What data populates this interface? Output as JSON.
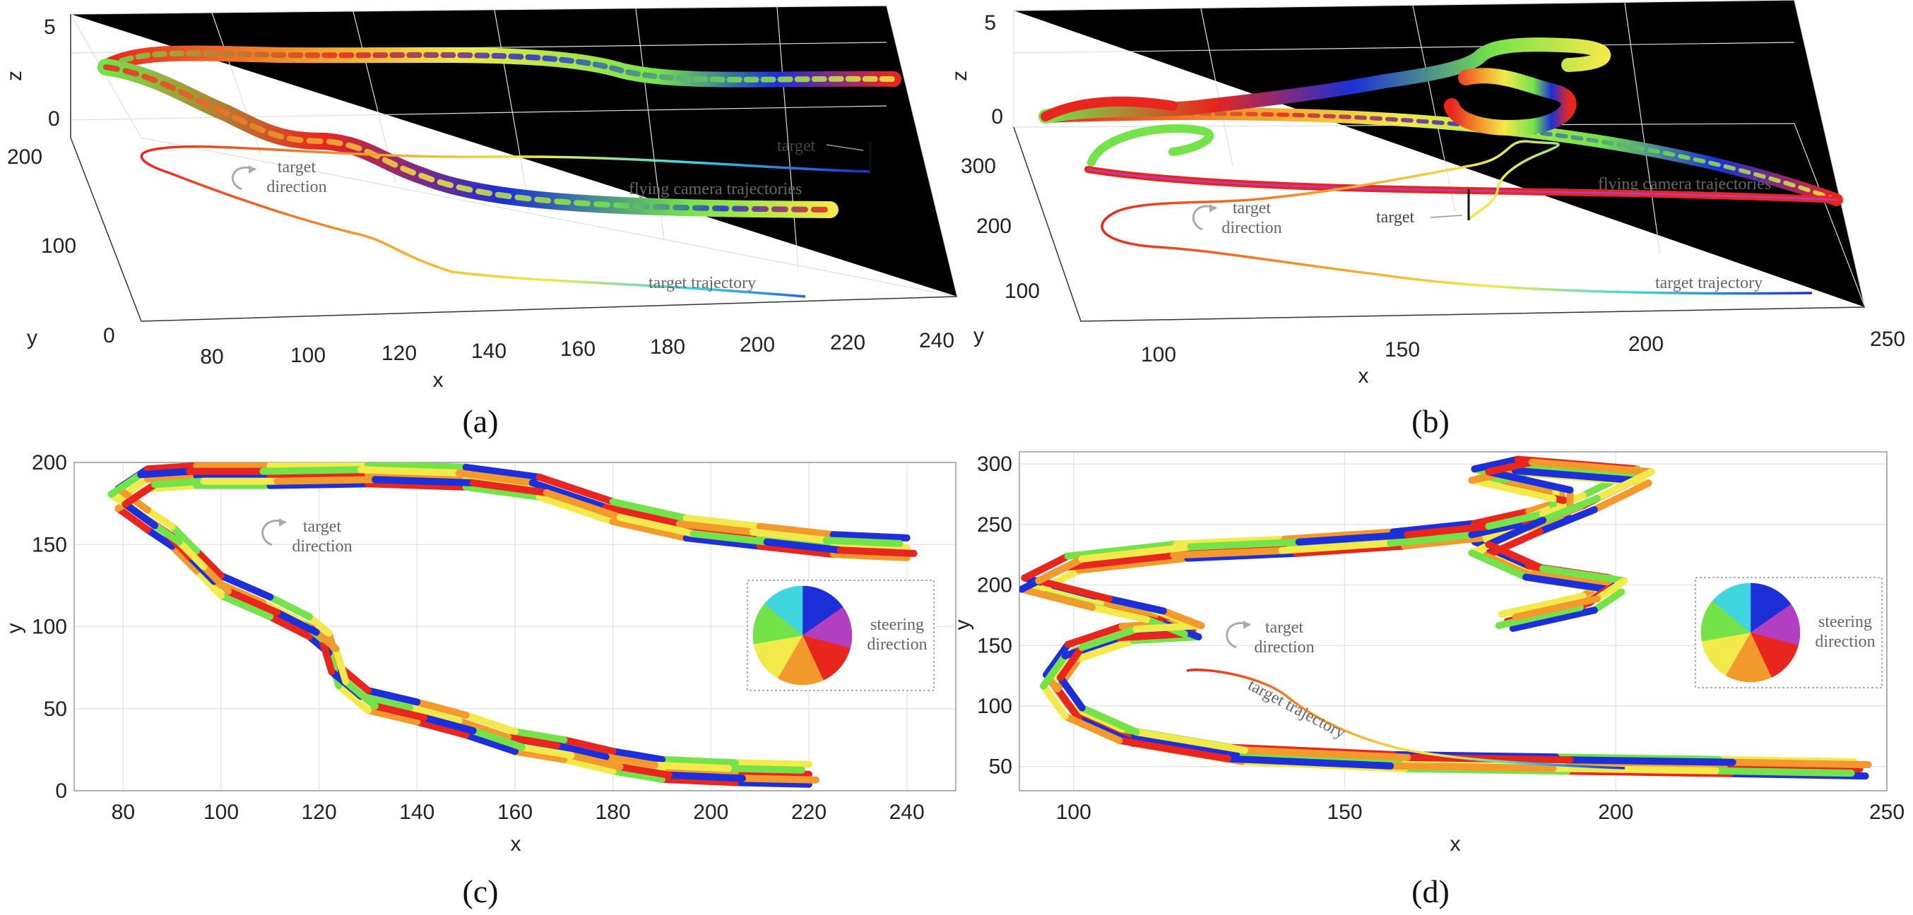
{
  "captions": [
    "(a)",
    "(b)",
    "(c)",
    "(d)"
  ],
  "colors": {
    "red": "#e8261e",
    "orange": "#f39a2c",
    "yellow": "#f2e94a",
    "green": "#74e34a",
    "cyan": "#3fd6e0",
    "blue": "#1c2fd8",
    "purple": "#b23fbf",
    "annotation_gray": "#8a8a8a"
  },
  "colorwheel_label_line1": "steering",
  "colorwheel_label_line2": "direction",
  "chart_data": [
    {
      "id": "a",
      "type": "line",
      "view": "3d",
      "xlabel": "x",
      "ylabel": "y",
      "zlabel": "z",
      "x_ticks": [
        "80",
        "100",
        "120",
        "140",
        "160",
        "180",
        "200",
        "220",
        "240"
      ],
      "y_ticks": [
        "0",
        "100",
        "200"
      ],
      "z_ticks": [
        "0",
        "5"
      ],
      "annotations": {
        "target": "target",
        "direction_line1": "target",
        "direction_line2": "direction",
        "flying": "flying camera trajectories",
        "trajectory": "target trajectory"
      }
    },
    {
      "id": "b",
      "type": "line",
      "view": "3d",
      "xlabel": "x",
      "ylabel": "y",
      "zlabel": "z",
      "x_ticks": [
        "100",
        "150",
        "200",
        "250"
      ],
      "y_ticks": [
        "100",
        "200",
        "300"
      ],
      "z_ticks": [
        "0",
        "5"
      ],
      "annotations": {
        "target": "target",
        "direction_line1": "target",
        "direction_line2": "direction",
        "flying": "flying camera trajectories",
        "trajectory": "target trajectory"
      }
    },
    {
      "id": "c",
      "type": "line",
      "view": "2d",
      "xlabel": "x",
      "ylabel": "y",
      "xlim": [
        70,
        250
      ],
      "ylim": [
        0,
        200
      ],
      "x_ticks": [
        80,
        100,
        120,
        140,
        160,
        180,
        200,
        220,
        240
      ],
      "y_ticks": [
        0,
        50,
        100,
        150,
        200
      ],
      "grid": true,
      "annotations": {
        "direction_line1": "target",
        "direction_line2": "direction"
      },
      "series": [
        {
          "x": [
            220,
            205,
            190,
            180,
            170,
            160,
            150,
            140,
            130,
            124,
            122,
            118,
            110,
            100,
            95,
            90,
            85,
            79,
            85,
            95,
            110,
            130,
            150,
            165,
            180,
            195,
            210,
            225,
            240
          ],
          "y": [
            10,
            11,
            13,
            18,
            25,
            30,
            40,
            48,
            55,
            70,
            90,
            100,
            112,
            125,
            140,
            155,
            165,
            178,
            190,
            192,
            192,
            193,
            191,
            185,
            170,
            160,
            155,
            150,
            148
          ]
        }
      ]
    },
    {
      "id": "d",
      "type": "line",
      "view": "2d",
      "xlabel": "x",
      "ylabel": "y",
      "xlim": [
        90,
        250
      ],
      "ylim": [
        30,
        310
      ],
      "x_ticks": [
        100,
        150,
        200,
        250
      ],
      "y_ticks": [
        50,
        100,
        150,
        200,
        250,
        300
      ],
      "grid": true,
      "annotations": {
        "direction_line1": "target",
        "direction_line2": "direction",
        "trajectory": "target trajectory"
      },
      "series": [
        {
          "x": [
            245,
            220,
            190,
            160,
            130,
            110,
            100,
            96,
            100,
            110,
            122,
            115,
            105,
            92,
            100,
            120,
            140,
            160,
            175,
            185,
            190,
            190,
            175,
            183,
            205,
            195,
            185,
            175,
            185,
            200,
            195,
            180
          ],
          "y": [
            48,
            50,
            52,
            54,
            60,
            75,
            95,
            120,
            145,
            160,
            163,
            175,
            185,
            200,
            218,
            228,
            232,
            238,
            245,
            255,
            262,
            275,
            290,
            298,
            290,
            268,
            250,
            230,
            210,
            200,
            185,
            170
          ]
        }
      ]
    }
  ]
}
